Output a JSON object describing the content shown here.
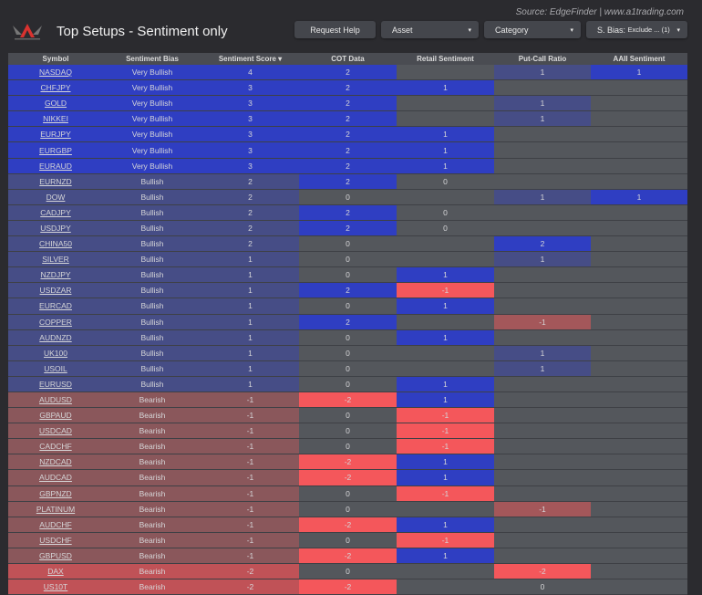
{
  "header": {
    "source": "Source: EdgeFinder | www.a1trading.com",
    "title": "Top Setups - Sentiment only",
    "logo_text": "A1 TRADING COMPANY"
  },
  "toolbar": {
    "request_help": "Request Help",
    "asset": "Asset",
    "category": "Category",
    "bias_filter_label": "S. Bias:",
    "bias_filter_value": "Exclude ... (1)",
    "caret": "▾"
  },
  "colors": {
    "strong_blue": "#2f3ec2",
    "slate_blue": "#464d86",
    "grey": "#54575c",
    "red": "#f4575b",
    "muted_red": "#8a575b",
    "mid_red": "#c05257",
    "pcr_red": "#a4575a"
  },
  "table": {
    "columns": [
      "Symbol",
      "Sentiment Bias",
      "Sentiment Score ▾",
      "COT Data",
      "Retail Sentiment",
      "Put-Call Ratio",
      "AAII Sentiment"
    ],
    "rows": [
      [
        "NASDAQ",
        "Very Bullish",
        "4",
        "2",
        "",
        "1",
        "1"
      ],
      [
        "CHFJPY",
        "Very Bullish",
        "3",
        "2",
        "1",
        "",
        ""
      ],
      [
        "GOLD",
        "Very Bullish",
        "3",
        "2",
        "",
        "1",
        ""
      ],
      [
        "NIKKEI",
        "Very Bullish",
        "3",
        "2",
        "",
        "1",
        ""
      ],
      [
        "EURJPY",
        "Very Bullish",
        "3",
        "2",
        "1",
        "",
        ""
      ],
      [
        "EURGBP",
        "Very Bullish",
        "3",
        "2",
        "1",
        "",
        ""
      ],
      [
        "EURAUD",
        "Very Bullish",
        "3",
        "2",
        "1",
        "",
        ""
      ],
      [
        "EURNZD",
        "Bullish",
        "2",
        "2",
        "0",
        "",
        ""
      ],
      [
        "DOW",
        "Bullish",
        "2",
        "0",
        "",
        "1",
        "1"
      ],
      [
        "CADJPY",
        "Bullish",
        "2",
        "2",
        "0",
        "",
        ""
      ],
      [
        "USDJPY",
        "Bullish",
        "2",
        "2",
        "0",
        "",
        ""
      ],
      [
        "CHINA50",
        "Bullish",
        "2",
        "0",
        "",
        "2",
        ""
      ],
      [
        "SILVER",
        "Bullish",
        "1",
        "0",
        "",
        "1",
        ""
      ],
      [
        "NZDJPY",
        "Bullish",
        "1",
        "0",
        "1",
        "",
        ""
      ],
      [
        "USDZAR",
        "Bullish",
        "1",
        "2",
        "-1",
        "",
        ""
      ],
      [
        "EURCAD",
        "Bullish",
        "1",
        "0",
        "1",
        "",
        ""
      ],
      [
        "COPPER",
        "Bullish",
        "1",
        "2",
        "",
        "-1",
        ""
      ],
      [
        "AUDNZD",
        "Bullish",
        "1",
        "0",
        "1",
        "",
        ""
      ],
      [
        "UK100",
        "Bullish",
        "1",
        "0",
        "",
        "1",
        ""
      ],
      [
        "USOIL",
        "Bullish",
        "1",
        "0",
        "",
        "1",
        ""
      ],
      [
        "EURUSD",
        "Bullish",
        "1",
        "0",
        "1",
        "",
        ""
      ],
      [
        "AUDUSD",
        "Bearish",
        "-1",
        "-2",
        "1",
        "",
        ""
      ],
      [
        "GBPAUD",
        "Bearish",
        "-1",
        "0",
        "-1",
        "",
        ""
      ],
      [
        "USDCAD",
        "Bearish",
        "-1",
        "0",
        "-1",
        "",
        ""
      ],
      [
        "CADCHF",
        "Bearish",
        "-1",
        "0",
        "-1",
        "",
        ""
      ],
      [
        "NZDCAD",
        "Bearish",
        "-1",
        "-2",
        "1",
        "",
        ""
      ],
      [
        "AUDCAD",
        "Bearish",
        "-1",
        "-2",
        "1",
        "",
        ""
      ],
      [
        "GBPNZD",
        "Bearish",
        "-1",
        "0",
        "-1",
        "",
        ""
      ],
      [
        "PLATINUM",
        "Bearish",
        "-1",
        "0",
        "",
        "-1",
        ""
      ],
      [
        "AUDCHF",
        "Bearish",
        "-1",
        "-2",
        "1",
        "",
        ""
      ],
      [
        "USDCHF",
        "Bearish",
        "-1",
        "0",
        "-1",
        "",
        ""
      ],
      [
        "GBPUSD",
        "Bearish",
        "-1",
        "-2",
        "1",
        "",
        ""
      ],
      [
        "DAX",
        "Bearish",
        "-2",
        "0",
        "",
        "-2",
        ""
      ],
      [
        "US10T",
        "Bearish",
        "-2",
        "-2",
        "",
        "0",
        ""
      ]
    ]
  }
}
